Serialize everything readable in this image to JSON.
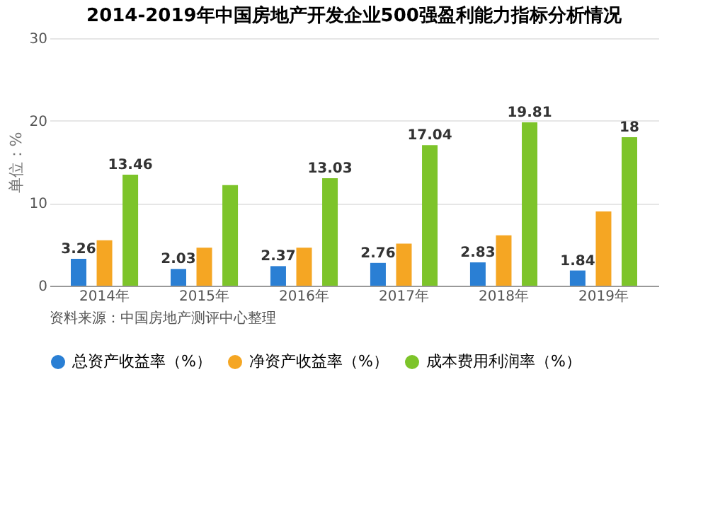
{
  "chart_data": {
    "type": "bar",
    "title": "2014-2019年中国房地产开发企业500强盈利能力指标分析情况",
    "ylabel": "单位：%",
    "categories": [
      "2014年",
      "2015年",
      "2016年",
      "2017年",
      "2018年",
      "2019年"
    ],
    "series": [
      {
        "name": "总资产收益率（%）",
        "color": "#2a7fd4",
        "values": [
          3.26,
          2.03,
          2.37,
          2.76,
          2.83,
          1.84
        ],
        "value_labels": [
          "3.26",
          "2.03",
          "2.37",
          "2.76",
          "2.83",
          "1.84"
        ]
      },
      {
        "name": "净资产收益率（%）",
        "color": "#f5a623",
        "values": [
          5.5,
          4.6,
          4.6,
          5.1,
          6.1,
          9.0
        ]
      },
      {
        "name": "成本费用利润率（%）",
        "color": "#7dc42a",
        "values": [
          13.46,
          12.2,
          13.03,
          17.04,
          19.81,
          18
        ],
        "value_labels": [
          "13.46",
          null,
          "13.03",
          "17.04",
          "19.81",
          "18"
        ]
      }
    ],
    "ylim": [
      0,
      30
    ],
    "yticks": [
      0,
      10,
      20,
      30
    ],
    "grid": "y",
    "legend": "bottom",
    "annotations": [
      "资料来源：中国房地产测评中心整理"
    ]
  }
}
